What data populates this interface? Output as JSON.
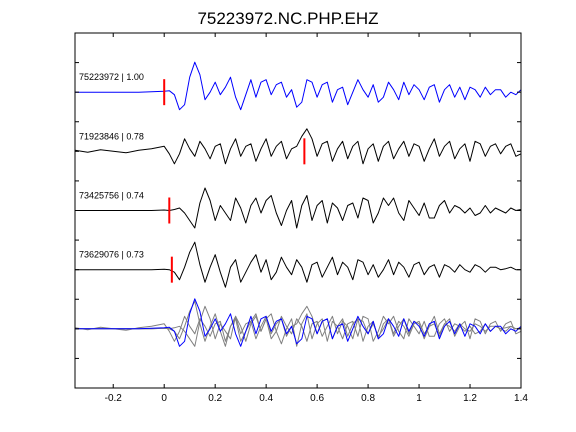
{
  "chart_data": {
    "type": "line",
    "title": "75223972.NC.PHP.EHZ",
    "xlabel": "",
    "ylabel": "",
    "xlim": [
      -0.35,
      1.4
    ],
    "ylim": [
      0,
      6
    ],
    "grid": false,
    "legend": "none",
    "x_ticks": [
      {
        "value": -0.2,
        "label": "-0.2"
      },
      {
        "value": 0,
        "label": "0"
      },
      {
        "value": 0.2,
        "label": "0.2"
      },
      {
        "value": 0.4,
        "label": "0.4"
      },
      {
        "value": 0.6,
        "label": "0.6"
      },
      {
        "value": 0.8,
        "label": "0.8"
      },
      {
        "value": 1,
        "label": "1"
      },
      {
        "value": 1.2,
        "label": "1.2"
      },
      {
        "value": 1.4,
        "label": "1.4"
      }
    ],
    "y_ticks": [
      0.5,
      1,
      1.5,
      2,
      2.5,
      3,
      3.5,
      4,
      4.5,
      5,
      5.5
    ],
    "colors": {
      "master": "#0000ff",
      "trace": "#000000",
      "stack_gray": "#808080",
      "pick": "#ff0000"
    },
    "series": [
      {
        "name": "75223972",
        "label": "75223972 | 1.00",
        "correlation": 1.0,
        "offset": 5,
        "pick": 0,
        "color": "#0000ff",
        "x": [
          -0.35,
          -0.3,
          -0.25,
          -0.2,
          -0.15,
          -0.1,
          -0.05,
          0.0,
          0.02,
          0.04,
          0.06,
          0.08,
          0.1,
          0.12,
          0.14,
          0.16,
          0.18,
          0.2,
          0.22,
          0.24,
          0.26,
          0.28,
          0.3,
          0.32,
          0.34,
          0.36,
          0.38,
          0.4,
          0.42,
          0.44,
          0.46,
          0.48,
          0.5,
          0.52,
          0.54,
          0.56,
          0.58,
          0.6,
          0.62,
          0.64,
          0.66,
          0.68,
          0.7,
          0.72,
          0.74,
          0.76,
          0.78,
          0.8,
          0.82,
          0.84,
          0.86,
          0.88,
          0.9,
          0.92,
          0.94,
          0.96,
          0.98,
          1.0,
          1.02,
          1.04,
          1.06,
          1.08,
          1.1,
          1.12,
          1.14,
          1.16,
          1.18,
          1.2,
          1.22,
          1.24,
          1.26,
          1.28,
          1.3,
          1.32,
          1.34,
          1.36,
          1.38,
          1.4
        ],
        "y": [
          0,
          0,
          0,
          0,
          0,
          0,
          0.01,
          0.02,
          0.03,
          -0.05,
          -0.35,
          -0.25,
          0.3,
          0.6,
          0.35,
          -0.15,
          0,
          0.2,
          -0.05,
          0.1,
          0.3,
          -0.1,
          -0.35,
          -0.05,
          0.25,
          -0.1,
          0.2,
          0.25,
          -0.05,
          0.15,
          0.2,
          -0.1,
          0.05,
          -0.3,
          -0.2,
          0.25,
          0.2,
          -0.1,
          0.15,
          0.2,
          -0.2,
          0.05,
          0.1,
          -0.25,
          0,
          0.25,
          0.05,
          -0.1,
          0.15,
          -0.2,
          -0.1,
          0.2,
          0.05,
          -0.15,
          0.2,
          -0.05,
          0.15,
          0.05,
          -0.15,
          0.1,
          0.15,
          -0.2,
          0.05,
          0.15,
          -0.1,
          0.1,
          -0.15,
          0.1,
          0.05,
          -0.1,
          0.1,
          -0.05,
          0.05,
          0.05,
          -0.1,
          0,
          -0.05,
          0.05
        ]
      },
      {
        "name": "71923846",
        "label": "71923846 | 0.78",
        "correlation": 0.78,
        "offset": 4,
        "pick": 0.55,
        "color": "#000000",
        "x": [
          -0.35,
          -0.3,
          -0.25,
          -0.2,
          -0.15,
          -0.1,
          -0.05,
          0.0,
          0.02,
          0.04,
          0.06,
          0.08,
          0.1,
          0.12,
          0.14,
          0.16,
          0.18,
          0.2,
          0.22,
          0.24,
          0.26,
          0.28,
          0.3,
          0.32,
          0.34,
          0.36,
          0.38,
          0.4,
          0.42,
          0.44,
          0.46,
          0.48,
          0.5,
          0.52,
          0.54,
          0.56,
          0.58,
          0.6,
          0.62,
          0.64,
          0.66,
          0.68,
          0.7,
          0.72,
          0.74,
          0.76,
          0.78,
          0.8,
          0.82,
          0.84,
          0.86,
          0.88,
          0.9,
          0.92,
          0.94,
          0.96,
          0.98,
          1.0,
          1.02,
          1.04,
          1.06,
          1.08,
          1.1,
          1.12,
          1.14,
          1.16,
          1.18,
          1.2,
          1.22,
          1.24,
          1.26,
          1.28,
          1.3,
          1.32,
          1.34,
          1.36,
          1.38,
          1.4
        ],
        "y": [
          0.02,
          -0.02,
          0.03,
          0,
          -0.03,
          0.02,
          0.05,
          0.1,
          -0.05,
          -0.25,
          -0.05,
          0.25,
          0.05,
          -0.1,
          0.2,
          0.05,
          -0.15,
          0.1,
          0.15,
          -0.25,
          0.05,
          0.25,
          -0.1,
          0.1,
          0.15,
          -0.2,
          0.05,
          0.25,
          -0.1,
          0.1,
          0.2,
          -0.15,
          0.05,
          0.1,
          0.3,
          0.45,
          0.25,
          -0.1,
          0.15,
          0.2,
          -0.2,
          0.05,
          0.2,
          -0.15,
          0.1,
          0.2,
          -0.25,
          0.05,
          0.15,
          -0.2,
          0.1,
          0.2,
          -0.15,
          0.05,
          0.2,
          -0.1,
          0.15,
          0.1,
          -0.2,
          0.05,
          0.25,
          -0.1,
          0.1,
          0.2,
          -0.15,
          0.05,
          0.15,
          -0.2,
          0.2,
          0.15,
          -0.1,
          0.1,
          0.15,
          -0.05,
          0.1,
          0.15,
          -0.1,
          -0.05
        ]
      },
      {
        "name": "73425756",
        "label": "73425756 | 0.74",
        "correlation": 0.74,
        "offset": 3,
        "pick": 0.02,
        "color": "#000000",
        "x": [
          -0.35,
          -0.3,
          -0.25,
          -0.2,
          -0.15,
          -0.1,
          -0.05,
          0.0,
          0.02,
          0.04,
          0.06,
          0.08,
          0.1,
          0.12,
          0.14,
          0.16,
          0.18,
          0.2,
          0.22,
          0.24,
          0.26,
          0.28,
          0.3,
          0.32,
          0.34,
          0.36,
          0.38,
          0.4,
          0.42,
          0.44,
          0.46,
          0.48,
          0.5,
          0.52,
          0.54,
          0.56,
          0.58,
          0.6,
          0.62,
          0.64,
          0.66,
          0.68,
          0.7,
          0.72,
          0.74,
          0.76,
          0.78,
          0.8,
          0.82,
          0.84,
          0.86,
          0.88,
          0.9,
          0.92,
          0.94,
          0.96,
          0.98,
          1.0,
          1.02,
          1.04,
          1.06,
          1.08,
          1.1,
          1.12,
          1.14,
          1.16,
          1.18,
          1.2,
          1.22,
          1.24,
          1.26,
          1.28,
          1.3,
          1.32,
          1.34,
          1.36,
          1.38,
          1.4
        ],
        "y": [
          0,
          0,
          0,
          0,
          0,
          0,
          0,
          0.01,
          0,
          0.02,
          0.05,
          -0.05,
          -0.2,
          -0.35,
          0.15,
          0.45,
          0.2,
          -0.2,
          0.1,
          -0.05,
          -0.2,
          0.25,
          0.05,
          -0.25,
          0.1,
          0.25,
          -0.05,
          0.2,
          0.3,
          -0.05,
          -0.3,
          0,
          0.2,
          -0.35,
          0.1,
          0.3,
          -0.2,
          0.1,
          0.2,
          -0.25,
          0.15,
          0.05,
          -0.2,
          0.1,
          0.15,
          -0.15,
          0.25,
          0.2,
          -0.25,
          -0.05,
          0.25,
          0.1,
          0.25,
          -0.05,
          -0.2,
          0.2,
          0.05,
          -0.1,
          0.15,
          -0.15,
          -0.15,
          0.1,
          0.2,
          -0.05,
          0.1,
          0.05,
          -0.05,
          0.05,
          -0.1,
          -0.05,
          0.1,
          -0.05,
          0.05,
          0,
          -0.05,
          0.05,
          0,
          0.02
        ]
      },
      {
        "name": "73629076",
        "label": "73629076 | 0.73",
        "correlation": 0.73,
        "offset": 2,
        "pick": 0.03,
        "color": "#000000",
        "x": [
          -0.35,
          -0.3,
          -0.25,
          -0.2,
          -0.15,
          -0.1,
          -0.05,
          0.0,
          0.02,
          0.04,
          0.06,
          0.08,
          0.1,
          0.12,
          0.14,
          0.16,
          0.18,
          0.2,
          0.22,
          0.24,
          0.26,
          0.28,
          0.3,
          0.32,
          0.34,
          0.36,
          0.38,
          0.4,
          0.42,
          0.44,
          0.46,
          0.48,
          0.5,
          0.52,
          0.54,
          0.56,
          0.58,
          0.6,
          0.62,
          0.64,
          0.66,
          0.68,
          0.7,
          0.72,
          0.74,
          0.76,
          0.78,
          0.8,
          0.82,
          0.84,
          0.86,
          0.88,
          0.9,
          0.92,
          0.94,
          0.96,
          0.98,
          1.0,
          1.02,
          1.04,
          1.06,
          1.08,
          1.1,
          1.12,
          1.14,
          1.16,
          1.18,
          1.2,
          1.22,
          1.24,
          1.26,
          1.28,
          1.3,
          1.32,
          1.34,
          1.36,
          1.38,
          1.4
        ],
        "y": [
          0,
          0,
          0,
          0,
          0,
          0,
          0,
          0.01,
          0,
          -0.05,
          -0.2,
          0.05,
          0.35,
          0.55,
          0.1,
          -0.25,
          0.05,
          0.3,
          -0.05,
          -0.35,
          0.05,
          0.2,
          -0.25,
          -0.05,
          0.15,
          0.3,
          -0.05,
          0.2,
          -0.2,
          -0.05,
          0.25,
          0.05,
          -0.1,
          0.2,
          0.05,
          -0.25,
          0.1,
          0.15,
          -0.15,
          0.05,
          0.25,
          -0.1,
          0.15,
          0.05,
          -0.2,
          0.2,
          0.15,
          -0.1,
          0.1,
          -0.15,
          0,
          0.2,
          -0.1,
          0.15,
          0.05,
          -0.15,
          0.1,
          0.15,
          -0.1,
          0.05,
          0.1,
          -0.15,
          0.1,
          0.05,
          -0.05,
          0.1,
          0,
          -0.05,
          0.1,
          0.05,
          -0.05,
          0.05,
          0.05,
          0,
          0.02,
          0.05,
          0,
          0
        ]
      }
    ]
  }
}
